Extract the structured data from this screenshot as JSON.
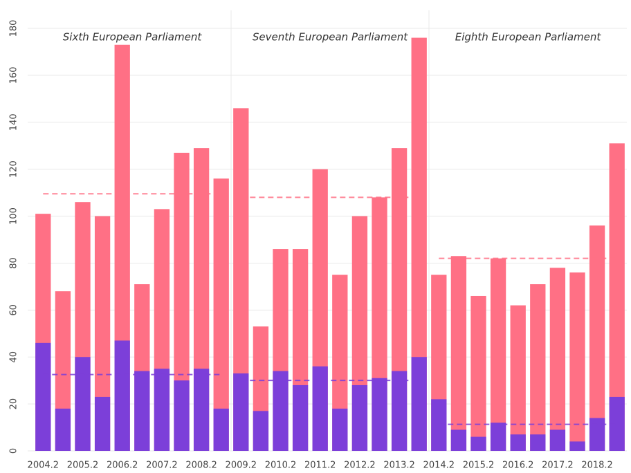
{
  "chart_data": {
    "type": "bar",
    "categories": [
      "2004.2",
      null,
      "2005.2",
      null,
      "2006.2",
      null,
      "2007.2",
      null,
      "2008.2",
      null,
      "2009.2",
      null,
      "2010.2",
      null,
      "2011.2",
      null,
      "2012.2",
      null,
      "2013.2",
      null,
      "2014.2",
      null,
      "2015.2",
      null,
      "2016.2",
      null,
      "2017.2",
      null,
      "2018.2",
      null
    ],
    "periods": [
      "Sixth European Parliament",
      "Seventh European Parliament",
      "Eighth European Parliament"
    ],
    "series": [
      {
        "color": "#ff7085",
        "values": [
          101,
          68,
          106,
          100,
          173,
          71,
          103,
          127,
          129,
          116,
          146,
          53,
          86,
          86,
          120,
          75,
          100,
          108,
          129,
          176,
          75,
          83,
          66,
          82,
          62,
          71,
          78,
          76,
          96,
          131
        ],
        "means": [
          109.5,
          108,
          82
        ]
      },
      {
        "color": "#7c3fd9",
        "values": [
          46,
          18,
          40,
          23,
          47,
          34,
          35,
          30,
          35,
          18,
          33,
          17,
          34,
          28,
          36,
          18,
          28,
          31,
          34,
          40,
          22,
          9,
          6,
          12,
          7,
          7,
          9,
          4,
          14,
          23
        ],
        "means": [
          32.5,
          30,
          11.3
        ]
      }
    ],
    "ylim": [
      0,
      180
    ],
    "yticks": [
      0,
      20,
      40,
      60,
      80,
      100,
      120,
      140,
      160,
      180
    ],
    "grid": true
  }
}
